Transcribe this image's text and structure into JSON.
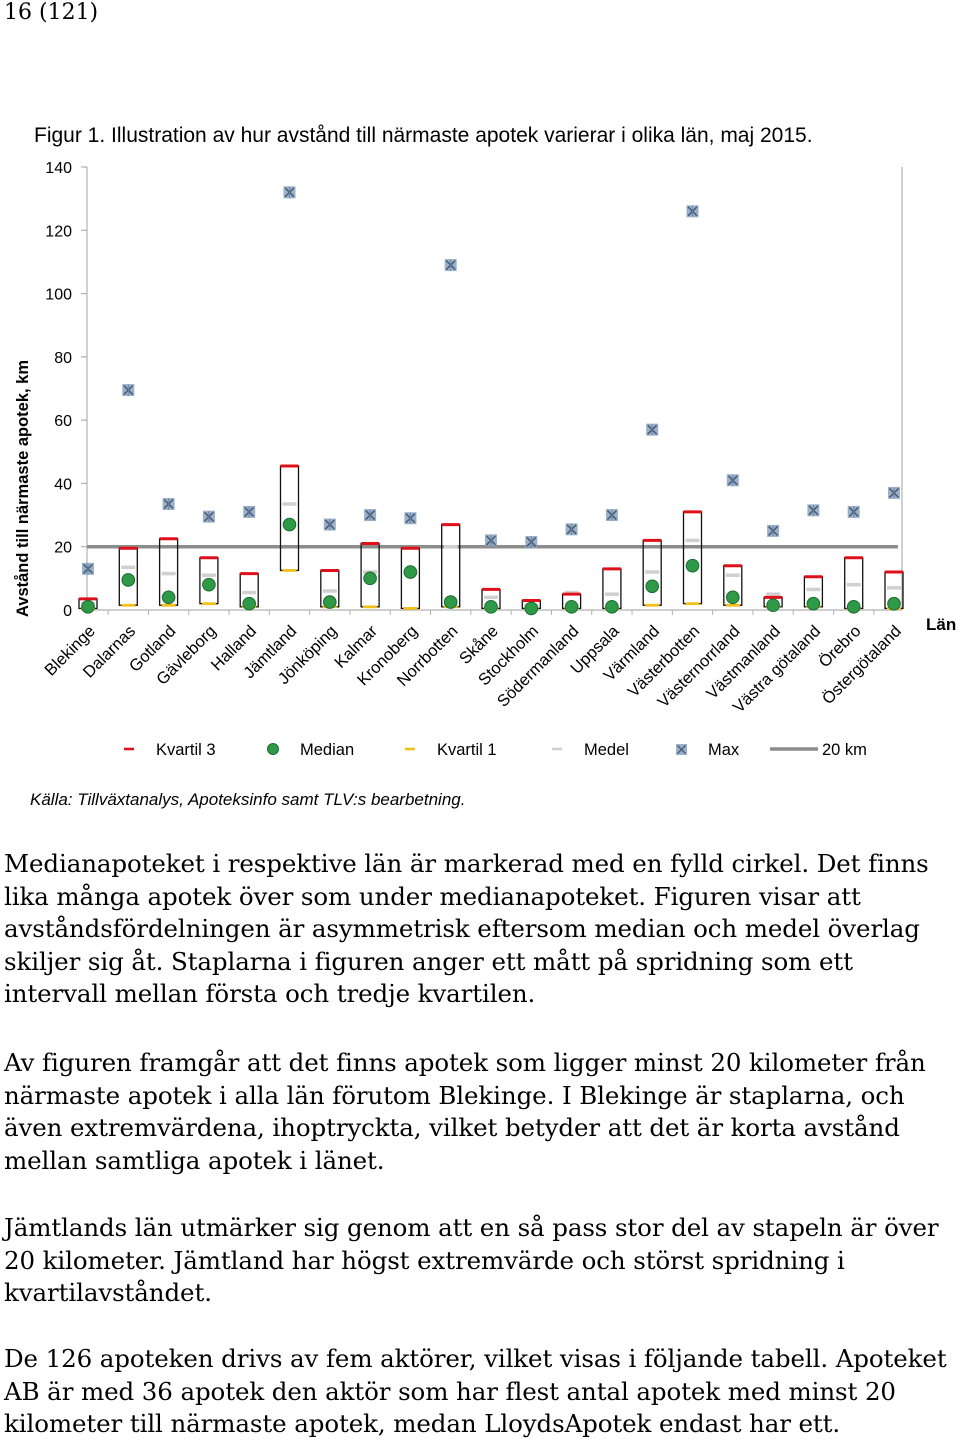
{
  "page_number": "16 (121)",
  "figure_caption": "Figur 1. Illustration av hur avstånd till närmaste apotek varierar i olika län, maj 2015.",
  "source_note": "Källa: Tillväxtanalys, Apoteksinfo samt TLV:s bearbetning.",
  "paragraphs": [
    "Medianapoteket i respektive län är markerad med en fylld cirkel. Det finns lika många apotek över som under medianapoteket. Figuren visar att avståndsfördelningen är asymmetrisk eftersom median och medel överlag skiljer sig åt. Staplarna i figuren anger ett mått på spridning som ett intervall mellan första och tredje kvartilen.",
    "Av figuren framgår att det finns apotek som ligger minst 20 kilometer från närmaste apotek i alla län förutom Blekinge. I Blekinge är staplarna, och även extremvärdena, ihoptryckta, vilket betyder att det är korta avstånd mellan samtliga apotek i länet.",
    "Jämtlands län utmärker sig genom att en så pass stor del av stapeln är över 20 kilometer. Jämtland har högst extremvärde och störst spridning i kvartilavståndet.",
    "De 126 apoteken drivs av fem aktörer, vilket visas i följande tabell. Apoteket AB är med 36 apotek den aktör som har flest antal apotek med minst 20 kilometer till närmaste apotek, medan LloydsApotek endast har ett."
  ],
  "colors": {
    "q3": "#e0101a",
    "median": "#2e9a48",
    "q1": "#f2c01b",
    "mean": "#d0d0d0",
    "max": "#8aa2c0",
    "ref": "#8c8c8c",
    "axis": "#b0b0b0"
  },
  "chart_data": {
    "type": "box",
    "ylabel": "Avstånd till närmaste apotek, km",
    "xlabel": "Län",
    "ylim": [
      0,
      140
    ],
    "yticks": [
      0,
      20,
      40,
      60,
      80,
      100,
      120,
      140
    ],
    "reference_line": {
      "value": 20,
      "label": "20 km"
    },
    "legend": [
      {
        "key": "q3",
        "label": "Kvartil 3"
      },
      {
        "key": "median",
        "label": "Median"
      },
      {
        "key": "q1",
        "label": "Kvartil 1"
      },
      {
        "key": "mean",
        "label": "Medel"
      },
      {
        "key": "max",
        "label": "Max"
      },
      {
        "key": "ref",
        "label": "20 km"
      }
    ],
    "categories": [
      "Blekinge",
      "Dalarnas",
      "Gotland",
      "Gävleborg",
      "Halland",
      "Jämtland",
      "Jönköping",
      "Kalmar",
      "Kronoberg",
      "Norrbotten",
      "Skåne",
      "Stockholm",
      "Södermanland",
      "Uppsala",
      "Värmland",
      "Västerbotten",
      "Västernorrland",
      "Västmanland",
      "Västra götaland",
      "Örebro",
      "Östergötaland"
    ],
    "q3": [
      3.5,
      19.5,
      22.5,
      16.5,
      11.5,
      45.5,
      12.5,
      21,
      19.5,
      27,
      6.5,
      3,
      5,
      13,
      22,
      31,
      14,
      4,
      10.5,
      16.5,
      12
    ],
    "median": [
      1,
      9.5,
      4,
      8,
      2,
      27,
      2.5,
      10,
      12,
      2.5,
      1,
      0.5,
      1,
      1,
      7.5,
      14,
      4,
      1.5,
      2,
      1,
      2
    ],
    "q1": [
      0.5,
      1.5,
      1.5,
      2,
      1,
      12.5,
      1,
      1,
      0.5,
      1,
      0.5,
      0.5,
      0.5,
      0.5,
      1.5,
      2,
      1.5,
      1,
      1,
      0.5,
      0.5
    ],
    "mean": [
      2,
      13.5,
      11.5,
      11,
      5.5,
      33.5,
      6,
      12,
      11.5,
      20,
      4,
      1.5,
      5.5,
      5,
      12,
      22,
      11,
      5,
      6.5,
      8,
      7
    ],
    "max": [
      13,
      69.5,
      33.5,
      29.5,
      31,
      132,
      27,
      30,
      29,
      109,
      22,
      21.5,
      25.5,
      30,
      57,
      126,
      41,
      25,
      31.5,
      31,
      37
    ]
  }
}
